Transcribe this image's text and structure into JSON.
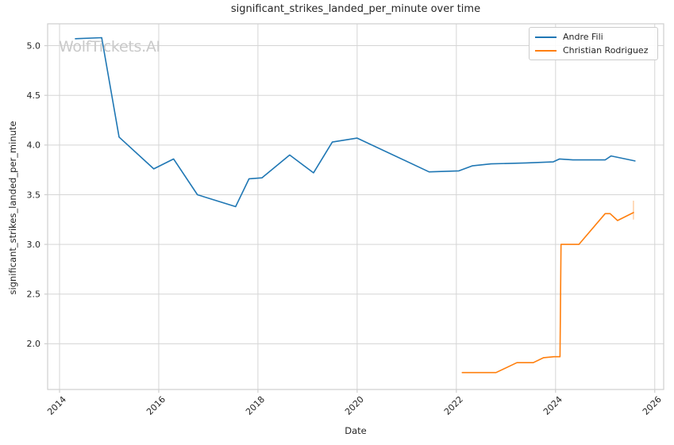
{
  "watermark": "WolfTickets.AI",
  "chart_data": {
    "type": "line",
    "title": "significant_strikes_landed_per_minute over time",
    "xlabel": "Date",
    "ylabel": "significant_strikes_landed_per_minute",
    "grid": true,
    "legend_position": "upper right",
    "background_color": "#ffffff",
    "grid_color": "#d5d5d5",
    "spine_color": "#cfcfcf",
    "text_color": "#262626",
    "xlim": [
      2013.76,
      2026.18
    ],
    "ylim": [
      1.54,
      5.22
    ],
    "x_ticks": [
      2014,
      2016,
      2018,
      2020,
      2022,
      2024,
      2026
    ],
    "x_tick_labels": [
      "2014",
      "2016",
      "2018",
      "2020",
      "2022",
      "2024",
      "2026"
    ],
    "y_ticks": [
      2.0,
      2.5,
      3.0,
      3.5,
      4.0,
      4.5,
      5.0
    ],
    "y_tick_labels": [
      "2.0",
      "2.5",
      "3.0",
      "3.5",
      "4.0",
      "4.5",
      "5.0"
    ],
    "series": [
      {
        "name": "Andre Fili",
        "color": "#1f77b4",
        "points": [
          [
            2014.32,
            5.07
          ],
          [
            2014.85,
            5.08
          ],
          [
            2015.2,
            4.08
          ],
          [
            2015.9,
            3.76
          ],
          [
            2016.3,
            3.86
          ],
          [
            2016.78,
            3.5
          ],
          [
            2017.55,
            3.38
          ],
          [
            2017.82,
            3.66
          ],
          [
            2018.08,
            3.67
          ],
          [
            2018.64,
            3.9
          ],
          [
            2019.12,
            3.72
          ],
          [
            2019.5,
            4.03
          ],
          [
            2020.0,
            4.07
          ],
          [
            2021.45,
            3.73
          ],
          [
            2022.05,
            3.74
          ],
          [
            2022.32,
            3.79
          ],
          [
            2022.7,
            3.81
          ],
          [
            2023.4,
            3.82
          ],
          [
            2023.95,
            3.83
          ],
          [
            2024.08,
            3.86
          ],
          [
            2024.35,
            3.85
          ],
          [
            2025.0,
            3.85
          ],
          [
            2025.12,
            3.89
          ],
          [
            2025.6,
            3.84
          ]
        ]
      },
      {
        "name": "Christian Rodriguez",
        "color": "#ff7f0e",
        "points": [
          [
            2022.12,
            1.71
          ],
          [
            2022.8,
            1.71
          ],
          [
            2023.22,
            1.81
          ],
          [
            2023.55,
            1.81
          ],
          [
            2023.76,
            1.86
          ],
          [
            2023.97,
            1.87
          ],
          [
            2024.09,
            1.87
          ],
          [
            2024.11,
            3.0
          ],
          [
            2024.47,
            3.0
          ],
          [
            2025.0,
            3.31
          ],
          [
            2025.1,
            3.31
          ],
          [
            2025.25,
            3.24
          ],
          [
            2025.57,
            3.32
          ]
        ],
        "end_marker": {
          "x": 2025.57,
          "y_from": 3.25,
          "y_to": 3.44,
          "opacity": 0.35
        }
      }
    ]
  }
}
